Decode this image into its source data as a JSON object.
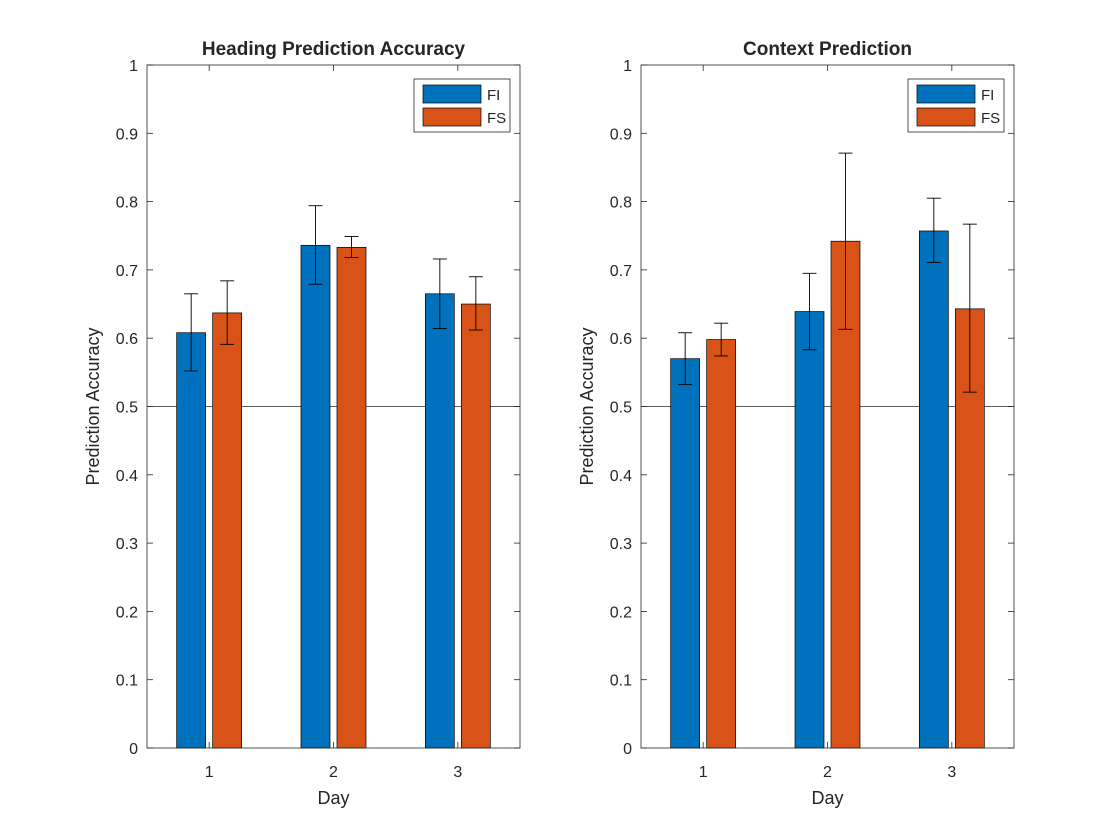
{
  "chart_data": [
    {
      "type": "bar",
      "title": "Heading Prediction Accuracy",
      "xlabel": "Day",
      "ylabel": "Prediction Accuracy",
      "categories": [
        "1",
        "2",
        "3"
      ],
      "ylim": [
        0,
        1
      ],
      "yticks": [
        "0",
        "0.1",
        "0.2",
        "0.3",
        "0.4",
        "0.5",
        "0.6",
        "0.7",
        "0.8",
        "0.9",
        "1"
      ],
      "reference_line": 0.5,
      "legend_position": "top-right",
      "grid": false,
      "series": [
        {
          "name": "FI",
          "color": "#0072BD",
          "values": [
            0.608,
            0.736,
            0.665
          ],
          "error_low": [
            0.552,
            0.679,
            0.614
          ],
          "error_high": [
            0.665,
            0.794,
            0.716
          ]
        },
        {
          "name": "FS",
          "color": "#D95319",
          "values": [
            0.637,
            0.733,
            0.65
          ],
          "error_low": [
            0.591,
            0.718,
            0.612
          ],
          "error_high": [
            0.684,
            0.749,
            0.69
          ]
        }
      ]
    },
    {
      "type": "bar",
      "title": "Context Prediction",
      "xlabel": "Day",
      "ylabel": "Prediction Accuracy",
      "categories": [
        "1",
        "2",
        "3"
      ],
      "ylim": [
        0,
        1
      ],
      "yticks": [
        "0",
        "0.1",
        "0.2",
        "0.3",
        "0.4",
        "0.5",
        "0.6",
        "0.7",
        "0.8",
        "0.9",
        "1"
      ],
      "reference_line": 0.5,
      "legend_position": "top-right",
      "grid": false,
      "series": [
        {
          "name": "FI",
          "color": "#0072BD",
          "values": [
            0.57,
            0.639,
            0.757
          ],
          "error_low": [
            0.532,
            0.583,
            0.711
          ],
          "error_high": [
            0.608,
            0.695,
            0.805
          ]
        },
        {
          "name": "FS",
          "color": "#D95319",
          "values": [
            0.598,
            0.742,
            0.643
          ],
          "error_low": [
            0.574,
            0.613,
            0.521
          ],
          "error_high": [
            0.622,
            0.871,
            0.767
          ]
        }
      ]
    }
  ]
}
